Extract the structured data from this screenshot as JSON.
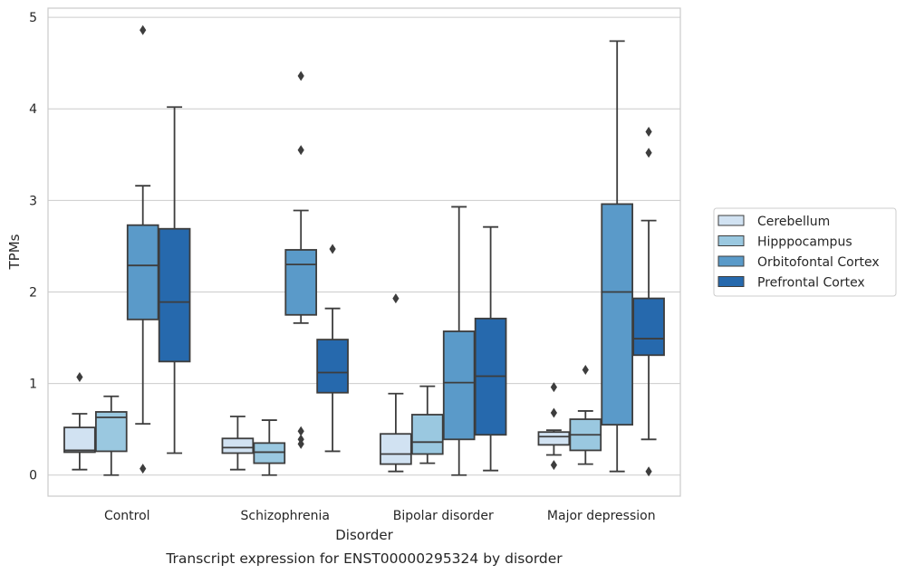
{
  "caption": "Transcript expression for ENST00000295324 by disorder",
  "chart_data": {
    "type": "boxplot",
    "xlabel": "Disorder",
    "ylabel": "TPMs",
    "ylim": [
      -0.23,
      5.1
    ],
    "yticks": [
      0,
      1,
      2,
      3,
      4,
      5
    ],
    "grid": "horizontal",
    "legend_position": "right",
    "categories": [
      "Control",
      "Schizophrenia",
      "Bipolar disorder",
      "Major depression"
    ],
    "series": [
      {
        "name": "Cerebellum",
        "color": "#d1e2f2",
        "boxes": [
          {
            "whisker_low": 0.06,
            "q1": 0.25,
            "median": 0.27,
            "q3": 0.52,
            "whisker_high": 0.67,
            "outliers": [
              1.07
            ]
          },
          {
            "whisker_low": 0.06,
            "q1": 0.24,
            "median": 0.3,
            "q3": 0.4,
            "whisker_high": 0.64,
            "outliers": []
          },
          {
            "whisker_low": 0.04,
            "q1": 0.12,
            "median": 0.23,
            "q3": 0.45,
            "whisker_high": 0.89,
            "outliers": [
              1.93
            ]
          },
          {
            "whisker_low": 0.22,
            "q1": 0.33,
            "median": 0.42,
            "q3": 0.47,
            "whisker_high": 0.49,
            "outliers": [
              0.96,
              0.68,
              0.11
            ]
          }
        ]
      },
      {
        "name": "Hipppocampus",
        "color": "#9ac8e0",
        "boxes": [
          {
            "whisker_low": 0.0,
            "q1": 0.26,
            "median": 0.63,
            "q3": 0.69,
            "whisker_high": 0.86,
            "outliers": []
          },
          {
            "whisker_low": 0.0,
            "q1": 0.13,
            "median": 0.25,
            "q3": 0.35,
            "whisker_high": 0.6,
            "outliers": []
          },
          {
            "whisker_low": 0.13,
            "q1": 0.23,
            "median": 0.36,
            "q3": 0.66,
            "whisker_high": 0.97,
            "outliers": []
          },
          {
            "whisker_low": 0.12,
            "q1": 0.27,
            "median": 0.44,
            "q3": 0.61,
            "whisker_high": 0.7,
            "outliers": [
              1.15
            ]
          }
        ]
      },
      {
        "name": "Orbitofontal Cortex",
        "color": "#5a9ac9",
        "boxes": [
          {
            "whisker_low": 0.56,
            "q1": 1.7,
            "median": 2.29,
            "q3": 2.73,
            "whisker_high": 3.16,
            "outliers": [
              4.86,
              0.07
            ]
          },
          {
            "whisker_low": 1.66,
            "q1": 1.75,
            "median": 2.3,
            "q3": 2.46,
            "whisker_high": 2.89,
            "outliers": [
              4.36,
              3.55,
              0.48,
              0.39,
              0.34
            ]
          },
          {
            "whisker_low": 0.0,
            "q1": 0.39,
            "median": 1.01,
            "q3": 1.57,
            "whisker_high": 2.93,
            "outliers": []
          },
          {
            "whisker_low": 0.04,
            "q1": 0.55,
            "median": 2.0,
            "q3": 2.96,
            "whisker_high": 4.74,
            "outliers": []
          }
        ]
      },
      {
        "name": "Prefrontal Cortex",
        "color": "#2669ad",
        "boxes": [
          {
            "whisker_low": 0.24,
            "q1": 1.24,
            "median": 1.89,
            "q3": 2.69,
            "whisker_high": 4.02,
            "outliers": []
          },
          {
            "whisker_low": 0.26,
            "q1": 0.9,
            "median": 1.12,
            "q3": 1.48,
            "whisker_high": 1.82,
            "outliers": [
              2.47
            ]
          },
          {
            "whisker_low": 0.05,
            "q1": 0.44,
            "median": 1.08,
            "q3": 1.71,
            "whisker_high": 2.71,
            "outliers": []
          },
          {
            "whisker_low": 0.39,
            "q1": 1.31,
            "median": 1.49,
            "q3": 1.93,
            "whisker_high": 2.78,
            "outliers": [
              3.75,
              3.52,
              0.04
            ]
          }
        ]
      }
    ]
  }
}
